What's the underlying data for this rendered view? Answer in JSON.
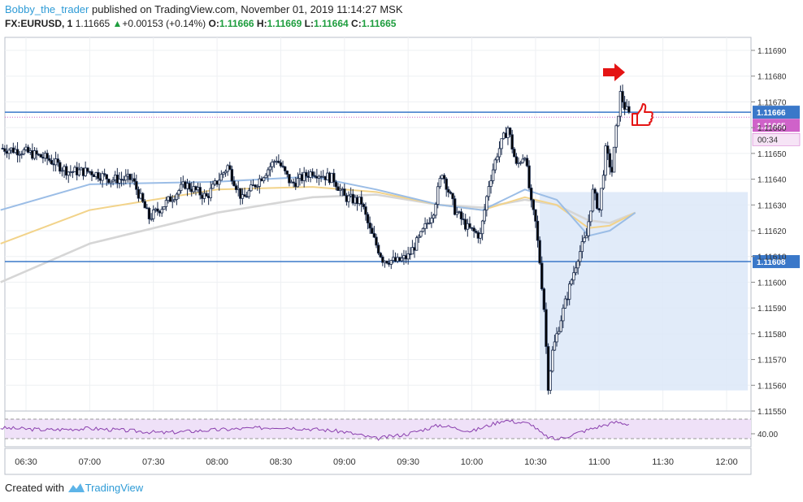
{
  "header": {
    "author": "Bobby_the_trader",
    "published_text": "published on TradingView.com, November 01, 2019 11:14:27 MSK",
    "symbol": "FX:EURUSD, 1",
    "last": "1.11665",
    "up_arrow": "▲",
    "change": "+0.00153 (+0.14%)",
    "o_label": "O:",
    "o": "1.11666",
    "h_label": "H:",
    "h": "1.11669",
    "l_label": "L:",
    "l": "1.11664",
    "c_label": "C:",
    "c": "1.11665"
  },
  "footer": {
    "created_with": "Created with",
    "brand": "TradingView"
  },
  "colors": {
    "up": "#ffffff",
    "down": "#000000",
    "outline": "#1a2a4a",
    "ma_fast": "#9bbde6",
    "ma_mid": "#f2d38a",
    "ma_slow": "#d6d6d6",
    "level": "#3a78c9",
    "box": "#dce8f8",
    "rsi": "#8a3fae",
    "rsi_band": "#efe1f8",
    "arrow": "#e41414",
    "price_badge": "#cf62c9",
    "level_badge": "#3a78c9"
  },
  "icons": [
    "red-arrow-icon",
    "thumbs-up-icon",
    "tradingview-logo-icon"
  ],
  "chart_data": {
    "type": "candlestick",
    "x_ticks": [
      "06:30",
      "07:00",
      "07:30",
      "08:00",
      "08:30",
      "09:00",
      "09:30",
      "10:00",
      "10:30",
      "11:00",
      "11:30",
      "12:00"
    ],
    "y_ticks": [
      "1.11690",
      "1.11680",
      "1.11670",
      "1.11660",
      "1.11650",
      "1.11640",
      "1.11630",
      "1.11620",
      "1.11610",
      "1.11600",
      "1.11590",
      "1.11580",
      "1.11570",
      "1.11560",
      "1.11550"
    ],
    "ylim": [
      1.11548,
      1.11696
    ],
    "levels": [
      {
        "price": 1.11666,
        "label": "1.11666"
      },
      {
        "price": 1.11608,
        "label": "1.11608"
      }
    ],
    "current_price": {
      "price": 1.11665,
      "label": "1.11665",
      "countdown": "00:34"
    },
    "range_box": {
      "start": "10:32",
      "end": "12:10",
      "top": 1.11635,
      "bottom": 1.11558
    },
    "close_path": [
      [
        "06:18",
        1.11652
      ],
      [
        "06:28",
        1.11651
      ],
      [
        "06:40",
        1.11648
      ],
      [
        "06:50",
        1.11643
      ],
      [
        "07:00",
        1.11643
      ],
      [
        "07:10",
        1.1164
      ],
      [
        "07:20",
        1.1164
      ],
      [
        "07:28",
        1.11625
      ],
      [
        "07:35",
        1.1163
      ],
      [
        "07:45",
        1.11638
      ],
      [
        "07:55",
        1.11633
      ],
      [
        "08:05",
        1.11645
      ],
      [
        "08:12",
        1.11632
      ],
      [
        "08:20",
        1.1164
      ],
      [
        "08:28",
        1.11648
      ],
      [
        "08:35",
        1.11638
      ],
      [
        "08:45",
        1.11643
      ],
      [
        "08:55",
        1.1164
      ],
      [
        "09:00",
        1.11633
      ],
      [
        "09:08",
        1.11631
      ],
      [
        "09:12",
        1.1162
      ],
      [
        "09:18",
        1.11609
      ],
      [
        "09:25",
        1.11608
      ],
      [
        "09:30",
        1.1161
      ],
      [
        "09:36",
        1.11618
      ],
      [
        "09:42",
        1.11628
      ],
      [
        "09:46",
        1.11643
      ],
      [
        "09:52",
        1.11628
      ],
      [
        "09:58",
        1.11621
      ],
      [
        "10:04",
        1.11618
      ],
      [
        "10:08",
        1.11638
      ],
      [
        "10:12",
        1.1165
      ],
      [
        "10:17",
        1.1166
      ],
      [
        "10:21",
        1.11645
      ],
      [
        "10:25",
        1.1165
      ],
      [
        "10:28",
        1.1163
      ],
      [
        "10:30",
        1.11623
      ],
      [
        "10:32",
        1.11608
      ],
      [
        "10:34",
        1.1159
      ],
      [
        "10:36",
        1.1156
      ],
      [
        "10:38",
        1.11573
      ],
      [
        "10:42",
        1.11586
      ],
      [
        "10:46",
        1.11598
      ],
      [
        "10:50",
        1.1161
      ],
      [
        "10:54",
        1.11618
      ],
      [
        "10:57",
        1.11635
      ],
      [
        "11:00",
        1.11628
      ],
      [
        "11:03",
        1.11651
      ],
      [
        "11:06",
        1.11643
      ],
      [
        "11:08",
        1.11659
      ],
      [
        "11:10",
        1.11673
      ],
      [
        "11:12",
        1.11668
      ],
      [
        "11:14",
        1.11665
      ]
    ],
    "ma_fast": [
      [
        "06:18",
        1.11628
      ],
      [
        "07:00",
        1.11638
      ],
      [
        "08:00",
        1.11639
      ],
      [
        "08:45",
        1.11641
      ],
      [
        "09:15",
        1.11636
      ],
      [
        "09:45",
        1.1163
      ],
      [
        "10:05",
        1.11628
      ],
      [
        "10:25",
        1.11636
      ],
      [
        "10:40",
        1.11632
      ],
      [
        "10:55",
        1.11618
      ],
      [
        "11:05",
        1.1162
      ],
      [
        "11:17",
        1.11627
      ]
    ],
    "ma_mid": [
      [
        "06:18",
        1.11615
      ],
      [
        "07:00",
        1.11628
      ],
      [
        "08:00",
        1.11636
      ],
      [
        "08:45",
        1.11637
      ],
      [
        "09:15",
        1.11635
      ],
      [
        "09:45",
        1.1163
      ],
      [
        "10:05",
        1.11628
      ],
      [
        "10:25",
        1.11633
      ],
      [
        "10:40",
        1.1163
      ],
      [
        "10:55",
        1.11621
      ],
      [
        "11:05",
        1.11622
      ],
      [
        "11:17",
        1.11627
      ]
    ],
    "ma_slow": [
      [
        "06:18",
        1.116
      ],
      [
        "07:00",
        1.11615
      ],
      [
        "08:00",
        1.11627
      ],
      [
        "08:45",
        1.11633
      ],
      [
        "09:15",
        1.11634
      ],
      [
        "09:45",
        1.1163
      ],
      [
        "10:05",
        1.11629
      ],
      [
        "10:25",
        1.11632
      ],
      [
        "10:40",
        1.1163
      ],
      [
        "10:55",
        1.11624
      ],
      [
        "11:05",
        1.11623
      ],
      [
        "11:17",
        1.11627
      ]
    ],
    "rsi": {
      "tick": "40.00",
      "band": [
        30,
        70
      ],
      "ylim": [
        20,
        80
      ],
      "path": [
        [
          "06:18",
          52
        ],
        [
          "06:40",
          48
        ],
        [
          "07:00",
          51
        ],
        [
          "07:20",
          46
        ],
        [
          "07:35",
          42
        ],
        [
          "07:55",
          47
        ],
        [
          "08:10",
          50
        ],
        [
          "08:30",
          54
        ],
        [
          "08:50",
          48
        ],
        [
          "09:00",
          44
        ],
        [
          "09:15",
          30
        ],
        [
          "09:30",
          40
        ],
        [
          "09:45",
          58
        ],
        [
          "10:00",
          45
        ],
        [
          "10:15",
          68
        ],
        [
          "10:28",
          60
        ],
        [
          "10:34",
          36
        ],
        [
          "10:40",
          28
        ],
        [
          "10:50",
          42
        ],
        [
          "11:00",
          55
        ],
        [
          "11:08",
          64
        ],
        [
          "11:14",
          60
        ]
      ]
    }
  }
}
